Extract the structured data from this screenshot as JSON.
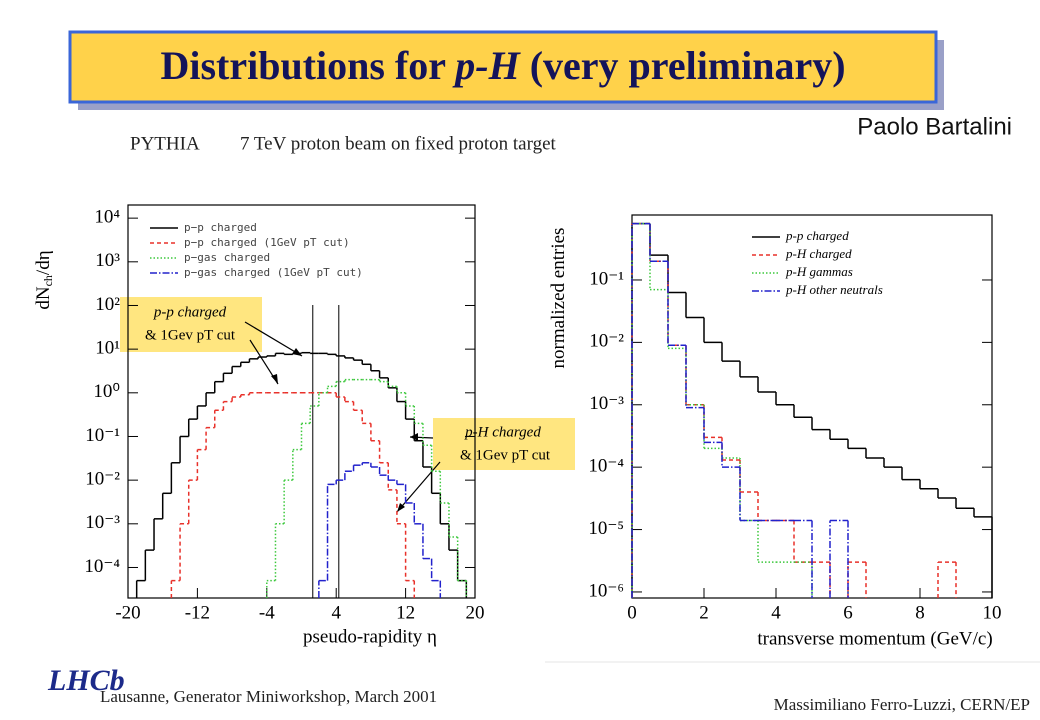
{
  "slide": {
    "title": [
      "Distributions for ",
      "p-H",
      " (very preliminary)"
    ],
    "author": "Paolo Bartalini",
    "generator": "PYTHIA",
    "setup": "7 TeV proton beam on fixed proton target",
    "logo": "LHCb",
    "footer_left": "Lausanne, Generator Miniworkshop, March 2001",
    "footer_right": "Massimiliano Ferro-Luzzi, CERN/EP"
  },
  "chart_data": [
    {
      "type": "histogram",
      "x_label": "pseudo-rapidity η",
      "y_label": [
        "dN",
        "ch",
        "/dη"
      ],
      "log_y": true,
      "grid": false,
      "legend": "upper-left",
      "xlim": [
        -20,
        20
      ],
      "xticks": [
        -20,
        -12,
        -4,
        4,
        12,
        20
      ],
      "ylim": [
        2e-05,
        20000
      ],
      "yticks": [
        {
          "value": 10000,
          "label": "10⁴"
        },
        {
          "value": 1000,
          "label": "10³"
        },
        {
          "value": 100,
          "label": "10²"
        },
        {
          "value": 10,
          "label": "10¹"
        },
        {
          "value": 1,
          "label": "10⁰"
        },
        {
          "value": 0.1,
          "label": "10⁻¹"
        },
        {
          "value": 0.01,
          "label": "10⁻²"
        },
        {
          "value": 0.001,
          "label": "10⁻³"
        },
        {
          "value": 0.0001,
          "label": "10⁻⁴"
        }
      ],
      "bins": [
        -20,
        -19,
        -18,
        -17,
        -16,
        -15,
        -14,
        -13,
        -12,
        -11,
        -10,
        -9,
        -8,
        -7,
        -6,
        -5,
        -4,
        -3,
        -2,
        -1,
        0,
        1,
        2,
        3,
        4,
        5,
        6,
        7,
        8,
        9,
        10,
        11,
        12,
        13,
        14,
        15,
        16,
        17,
        18,
        19,
        20
      ],
      "vlines": [
        1.3,
        4.3
      ],
      "annotations": [
        [
          "p-p charged",
          "& 1Gev pT cut"
        ],
        [
          "p-H charged",
          "& 1Gev pT cut"
        ]
      ],
      "series": [
        {
          "name": "p−p charged",
          "color": "#000000",
          "style": "solid",
          "values": [
            null,
            5e-05,
            0.00025,
            0.0013,
            0.005,
            0.025,
            0.1,
            0.25,
            0.5,
            1,
            1.8,
            2.8,
            4,
            5,
            6,
            6.6,
            7,
            8,
            7.6,
            8,
            8.3,
            8,
            8,
            7.6,
            7,
            6.3,
            5.6,
            4.5,
            3.2,
            2.2,
            1.3,
            0.63,
            0.25,
            0.08,
            0.02,
            0.005,
            0.001,
            0.00025,
            5e-05,
            null
          ]
        },
        {
          "name": "p−p charged (1GeV pT cut)",
          "color": "#e8312a",
          "style": "dashed",
          "values": [
            null,
            null,
            null,
            null,
            null,
            5e-05,
            0.001,
            0.01,
            0.05,
            0.16,
            0.4,
            0.63,
            0.8,
            0.9,
            1,
            1,
            1,
            1,
            1,
            1,
            1,
            1,
            1,
            1,
            0.8,
            0.63,
            0.4,
            0.2,
            0.08,
            0.025,
            0.006,
            0.001,
            5e-05,
            null,
            null,
            null,
            null,
            null,
            null,
            null
          ]
        },
        {
          "name": "p−gas charged",
          "color": "#3cc83c",
          "style": "dotted",
          "values": [
            null,
            null,
            null,
            null,
            null,
            null,
            null,
            null,
            null,
            null,
            null,
            null,
            null,
            null,
            null,
            null,
            5e-05,
            0.001,
            0.01,
            0.05,
            0.2,
            0.5,
            1,
            1.4,
            1.8,
            2,
            2,
            2,
            2,
            1.8,
            1.4,
            1,
            0.5,
            0.2,
            0.063,
            0.016,
            0.003,
            0.0005,
            5e-05,
            null
          ]
        },
        {
          "name": "p−gas charged (1GeV pT cut)",
          "color": "#2222cc",
          "style": "dashdot",
          "values": [
            null,
            null,
            null,
            null,
            null,
            null,
            null,
            null,
            null,
            null,
            null,
            null,
            null,
            null,
            null,
            null,
            null,
            null,
            null,
            null,
            null,
            null,
            5e-05,
            0.008,
            0.01,
            0.016,
            0.022,
            0.025,
            0.02,
            0.013,
            0.01,
            0.008,
            0.003,
            0.001,
            0.00016,
            5e-05,
            null,
            null,
            null,
            null
          ]
        }
      ]
    },
    {
      "type": "histogram",
      "x_label": "transverse momentum (GeV/c)",
      "y_label": [
        "normalized entries"
      ],
      "log_y": true,
      "grid": false,
      "legend": "upper-right",
      "xlim": [
        0,
        10
      ],
      "xticks": [
        0,
        2,
        4,
        6,
        8,
        10
      ],
      "ylim": [
        8e-07,
        1.1
      ],
      "yticks": [
        {
          "value": 0.1,
          "label": "10⁻¹"
        },
        {
          "value": 0.01,
          "label": "10⁻²"
        },
        {
          "value": 0.001,
          "label": "10⁻³"
        },
        {
          "value": 0.0001,
          "label": "10⁻⁴"
        },
        {
          "value": 1e-05,
          "label": "10⁻⁵"
        },
        {
          "value": 1e-06,
          "label": "10⁻⁶"
        }
      ],
      "bins": [
        0,
        0.5,
        1,
        1.5,
        2,
        2.5,
        3,
        3.5,
        4,
        4.5,
        5,
        5.5,
        6,
        6.5,
        7,
        7.5,
        8,
        8.5,
        9,
        9.5,
        10
      ],
      "series": [
        {
          "name": "p-p charged",
          "color": "#000000",
          "style": "solid",
          "values": [
            0.8,
            0.25,
            0.063,
            0.025,
            0.01,
            0.005,
            0.0028,
            0.0016,
            0.001,
            0.00063,
            0.0004,
            0.00028,
            0.0002,
            0.00014,
            0.0001,
            6.3e-05,
            4.5e-05,
            3.2e-05,
            2.2e-05,
            1.6e-05
          ]
        },
        {
          "name": "p-H charged",
          "color": "#e8312a",
          "style": "dashed",
          "values": [
            0.8,
            0.2,
            0.009,
            0.001,
            0.0003,
            0.00013,
            4e-05,
            1.4e-05,
            1.4e-05,
            3e-06,
            3e-06,
            null,
            3e-06,
            null,
            null,
            null,
            null,
            3e-06,
            null,
            null
          ]
        },
        {
          "name": "p-H gammas",
          "color": "#3cc83c",
          "style": "dotted",
          "values": [
            0.8,
            0.07,
            0.008,
            0.001,
            0.0002,
            0.00014,
            1.4e-05,
            3e-06,
            3e-06,
            3e-06,
            null,
            null,
            null,
            null,
            null,
            null,
            null,
            null,
            null,
            null
          ]
        },
        {
          "name": "p-H other neutrals",
          "color": "#2222cc",
          "style": "dashdot",
          "values": [
            0.8,
            0.2,
            0.009,
            0.0009,
            0.00025,
            0.0001,
            1.4e-05,
            1.4e-05,
            1.4e-05,
            1.4e-05,
            null,
            1.4e-05,
            null,
            null,
            null,
            null,
            null,
            null,
            null,
            null
          ]
        }
      ]
    }
  ]
}
